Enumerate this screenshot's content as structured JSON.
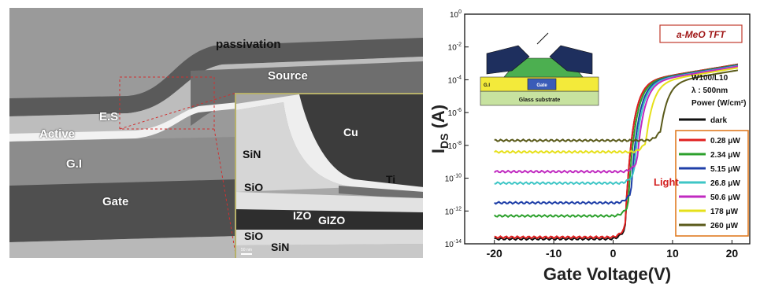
{
  "micrograph": {
    "labels": {
      "passivation": "passivation",
      "source": "Source",
      "es": "E.S",
      "active": "Active",
      "gi": "G.I",
      "gate": "Gate"
    },
    "inset_labels": {
      "cu": "Cu",
      "sin_top": "SiN",
      "ti": "Ti",
      "sio_top": "SiO",
      "izo": "IZO",
      "gizo": "GIZO",
      "sio_bottom": "SiO",
      "sin_bottom": "SiN",
      "scale": "50 nm"
    }
  },
  "chart_data": {
    "type": "line",
    "title": "a-MeO TFT",
    "xlabel": "Gate Voltage(V)",
    "ylabel": "I",
    "ylabel_sub": "DS",
    "ylabel_unit": "(A)",
    "xlim": [
      -25,
      23
    ],
    "ylim_log10": [
      -14,
      0
    ],
    "yscale": "log",
    "x_ticks": [
      "-20",
      "-10",
      "0",
      "10",
      "20"
    ],
    "x_tick_values": [
      -20,
      -10,
      0,
      10,
      20
    ],
    "y_tick_exponents": [
      -14,
      -12,
      -10,
      -8,
      -6,
      -4,
      -2,
      0
    ],
    "y_tick_base": "10",
    "conditions": [
      "W100/L10",
      "λ : 500nm",
      "Power (W/cm²)"
    ],
    "light_label": "Light",
    "device_inset_labels": {
      "substrate": "Glass substrate",
      "gate": "Gate",
      "gi": "G.I"
    },
    "series": [
      {
        "name": "dark",
        "color": "#111111",
        "off_log": -13.7,
        "on_log": -3.0,
        "vth": 2.0
      },
      {
        "name": "0.28 μW",
        "color": "#e02020",
        "off_log": -13.6,
        "on_log": -3.0,
        "vth": 2.0
      },
      {
        "name": "2.34 μW",
        "color": "#2ca02c",
        "off_log": -12.3,
        "on_log": -3.0,
        "vth": 2.5
      },
      {
        "name": "5.15 μW",
        "color": "#1f3fa8",
        "off_log": -11.5,
        "on_log": -3.0,
        "vth": 3.0
      },
      {
        "name": "26.8 μW",
        "color": "#3ec6c6",
        "off_log": -10.3,
        "on_log": -3.0,
        "vth": 3.5
      },
      {
        "name": "50.6 μW",
        "color": "#c02ac0",
        "off_log": -9.6,
        "on_log": -3.0,
        "vth": 4.0
      },
      {
        "name": "178 μW",
        "color": "#e6e01a",
        "off_log": -8.4,
        "on_log": -3.0,
        "vth": 5.5
      },
      {
        "name": "260 μW",
        "color": "#5a5a1a",
        "off_log": -7.7,
        "on_log": -3.0,
        "vth": 8.0
      }
    ]
  }
}
